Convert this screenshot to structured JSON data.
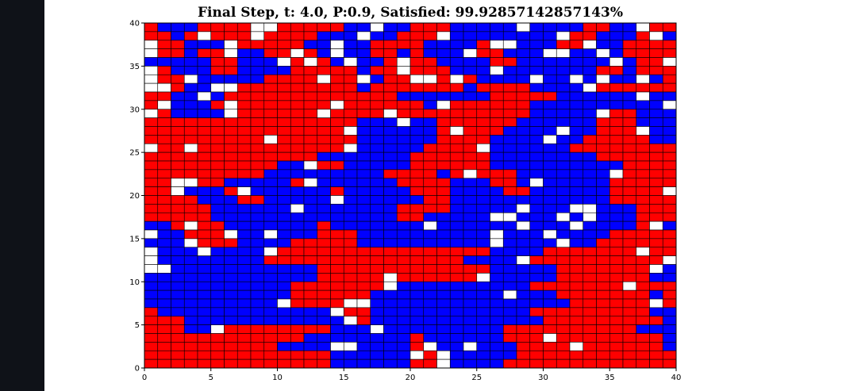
{
  "chart_data": {
    "type": "heatmap",
    "title": "Final Step, t: 4.0, P:0.9, Satisfied: 99.92857142857143%",
    "xlabel": "",
    "ylabel": "",
    "xlim": [
      0,
      40
    ],
    "ylim": [
      0,
      40
    ],
    "x_ticks": [
      0,
      5,
      10,
      15,
      20,
      25,
      30,
      35,
      40
    ],
    "y_ticks": [
      0,
      5,
      10,
      15,
      20,
      25,
      30,
      35,
      40
    ],
    "x_tick_labels": [
      "0",
      "5",
      "10",
      "15",
      "20",
      "25",
      "30",
      "35",
      "40"
    ],
    "y_tick_labels": [
      "0",
      "5",
      "10",
      "15",
      "20",
      "25",
      "30",
      "35",
      "40"
    ],
    "grid": true,
    "colors": {
      "R": "#ff0000",
      "B": "#0000ff",
      "W": "#ffffff",
      "grid": "#000000"
    },
    "cell_legend": {
      "R": "red agent",
      "B": "blue agent",
      "W": "empty"
    },
    "rows_top_to_bottom": [
      "RBBBRRRRWWRRRRRBBWBBRRRBBBBBWBBBBRRBBWRR",
      "RRBRWRRRWRRRRBBBWBBRRRWBBBBBBBBWRRBBBRWB",
      "WRRBBBWRRRRRBBWBBRRRRBBBBRWWBBBRRWBBRRRR",
      "WRRBRRWBBRRWRBWBBRRBRBBBWRRBBBWWBBWBRRRR",
      "BBBBBRRBBBWRWRBWBBRWRRBBBBRRBBBBBBBWBRRW",
      "WRBBBRRBBBBRRRRRBRRWRRRBBBWBBBBBBBRRBRRR",
      "WRRWBBBBBRRRRWRRWBRRWWRWRBBBBWBBWBWBBWBR",
      "WWRBBWWRRRRRRRRRBRRRRRRRBRRRRBBBBWRRRRRR",
      "RRBBWBRRRRRRRRRRRRRBBBBBBBRRRRRBBBBBBWBB",
      "RWBBBRWRRRRRRRWRRRRRRBWRRRRRRBBBBBBBBBBW",
      "WRBBBBWRRRRRRWRRRRWRRRRRRRRRRBBBBBWRRBBB",
      "RRRRRRRRRRRRRRRRBBBWBBRRRRRRBBBBBBRRRBBB",
      "RRRRRRRRRRRRRRRWBBBBBBRWRRRBBBBWBBRRRWBB",
      "RRRRRRRRRWRRRRRRBBBBBBRRRRBBBBWBBRRRRRBB",
      "WRRWRRRRRRRRRRRWBBBBBRRRRWBBBBBBRRRRRRRR",
      "RRRRRRRRRRRRRBBBBBBBRRRRRRBBBBBBBBRRRRRR",
      "RRRRRRRRRRBBWRRBBBBBRRRRRRBBBBBBBBBBRRRR",
      "RRRRRRRRRBBBBBBBBBRRRRBRWRRRBBBBBBBWRRRR",
      "RRWWRRBBBBBRWBBBBBBRRRRBBBRRBWBBBBBRRRRR",
      "RRWBBBRWBBBBBBRBBBBBRRRBBBBRRBBBBBBRRRRW",
      "RRRRBBBRRBBBBBWBBBBBBRRBBBBBBBBBBBBRRRRR",
      "RRRRRBBBBBBWBBBBBBBRRRRBBBBBWBBBWWBBBRRRR",
      "RRRRRBBBBBBBBBBBBBBRRBBBBBWWBBBWBWBBBRRRR",
      "BBRWRRBBBBBBBRBBBBBBBWBBBBBBWBBBWBBBBRWBB",
      "WBBRRRWBBWBBBRRRBBBBBBBBBBWBBBWBBBBRRRRRR",
      "BBBWRRRBBBBRRRRRBBBBBBBBBBWBBBBWBBRRRRRRR",
      "WBBBWBBBBWRRRRRRRRRRRRRRRRBBBBRRRRRRRWRRW",
      "WBBBBBBBBRRRRRRRRRRRRRRRBBBBWRRRRRRRRRRWB",
      "WWBBBBBBBBBBBRRRRRRRRRRRRRBBBBBRRRRRRRWBBB",
      "BBBBBBBBBBBBBRRRRRWRRRRRRWBBBBBRRRRRRRBBBB",
      "BBBBBBBBBBBRRRRRRRWBBBBBBBBBBRRRRRRRWRRRR",
      "BBBBBBBBBBBRRRRRRBBBBBBBBBBWBBBRRRRRRRBRRR",
      "BBBBBBBBBBWRRRRWWBBBBBBBBBBBBBBBRRRRRRWRRBB",
      "RBBBBBBBBBBBBBWRRBBBBBBBBBBBBRRRRRRRRRBBB",
      "RRRBBBBBBBBBBBBWRBBBBBBBBBBBBBRRRRRRRRRBBB",
      "RRRBBWRRRRRRRRBBBWBBBBBBBBBRRRRRRRRRRBBB",
      "RRRRRRRRRRRRBBBBBBBBRBBBBBBRRRWRRRRRRRRBB",
      "RRRRRRRRRRBBBBWWBBBBRWBBWBBBRRRRWRRRRRRBB",
      "RRRRRRRRRRRRRRBBBBBBWRWBBBBBRRRRRRRRRRRR",
      "RRRRRRRRRRRRRRBBBBBBRRWBBBBRRRRRRRRRRRRR"
    ]
  }
}
